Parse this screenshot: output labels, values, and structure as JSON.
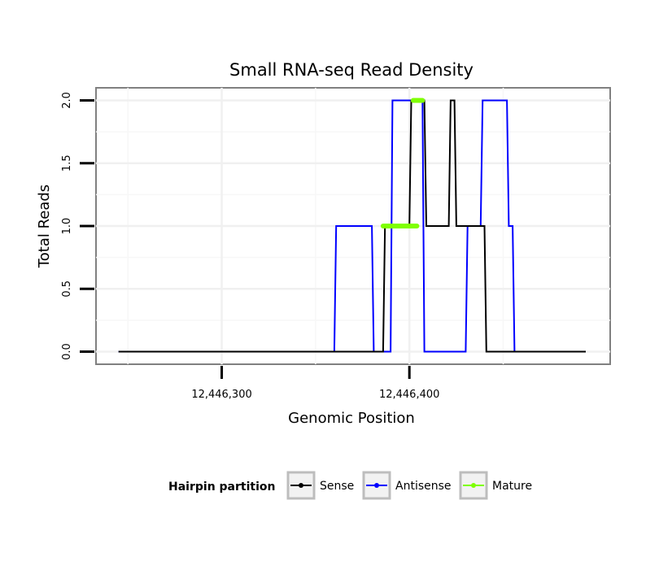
{
  "chart_data": {
    "type": "line",
    "title": "Small RNA-seq Read Density",
    "xlabel": "Genomic Position",
    "ylabel": "Total Reads",
    "xlim": [
      12446233,
      12446507
    ],
    "ylim": [
      -0.1,
      2.1
    ],
    "x_ticks": [
      {
        "value": 12446300,
        "label": "12,446,300"
      },
      {
        "value": 12446400,
        "label": "12,446,400"
      }
    ],
    "y_ticks": [
      {
        "value": 0.0,
        "label": "0.0"
      },
      {
        "value": 0.5,
        "label": "0.5"
      },
      {
        "value": 1.0,
        "label": "1.0"
      },
      {
        "value": 1.5,
        "label": "1.5"
      },
      {
        "value": 2.0,
        "label": "2.0"
      }
    ],
    "grid": true,
    "series": [
      {
        "name": "Antisense",
        "color": "#0000ff",
        "x": [
          12446245,
          12446360,
          12446361,
          12446380,
          12446381,
          12446390,
          12446391,
          12446407,
          12446408,
          12446430,
          12446431,
          12446438,
          12446439,
          12446452,
          12446453,
          12446455,
          12446456
        ],
        "y": [
          0,
          0,
          1,
          1,
          0,
          0,
          2,
          2,
          0,
          0,
          1,
          1,
          2,
          2,
          1,
          1,
          0
        ]
      },
      {
        "name": "Sense",
        "color": "#000000",
        "x": [
          12446245,
          12446386,
          12446387,
          12446400,
          12446401,
          12446408,
          12446409,
          12446421,
          12446422,
          12446424,
          12446425,
          12446440,
          12446441,
          12446494
        ],
        "y": [
          0,
          0,
          1,
          1,
          2,
          2,
          1,
          1,
          2,
          2,
          1,
          1,
          0,
          0
        ]
      },
      {
        "name": "Mature",
        "color": "#7fff00",
        "segments": [
          {
            "x0": 12446386,
            "x1": 12446404,
            "y": 1
          },
          {
            "x0": 12446402,
            "x1": 12446407,
            "y": 2
          }
        ]
      }
    ],
    "legend": {
      "title": "Hairpin partition",
      "position": "bottom",
      "entries": [
        {
          "label": "Sense",
          "color": "#000000"
        },
        {
          "label": "Antisense",
          "color": "#0000ff"
        },
        {
          "label": "Mature",
          "color": "#7fff00"
        }
      ]
    }
  }
}
